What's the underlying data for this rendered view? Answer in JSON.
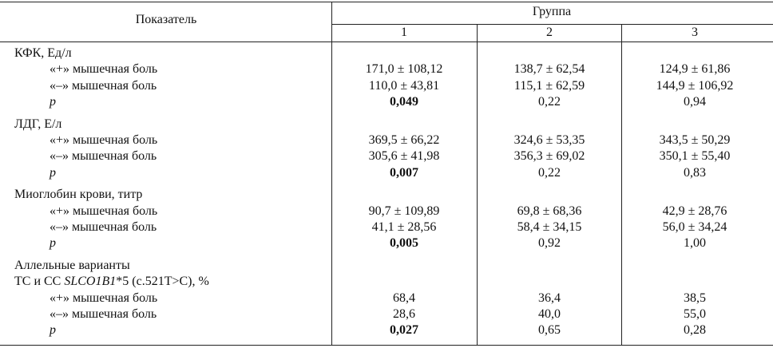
{
  "header": {
    "indicator": "Показатель",
    "group": "Группа",
    "groups": [
      "1",
      "2",
      "3"
    ]
  },
  "sections": [
    {
      "title_lines": [
        [
          {
            "text": "КФК, Ед/л"
          }
        ]
      ],
      "rows": [
        {
          "label": "«+» мышечная боль",
          "cells": [
            "171,0 ± 108,12",
            "138,7 ± 62,54",
            "124,9 ± 61,86"
          ]
        },
        {
          "label": "«–» мышечная боль",
          "cells": [
            "110,0 ± 43,81",
            "115,1 ± 62,59",
            "144,9 ± 106,92"
          ]
        },
        {
          "label": "p",
          "cells": [
            "0,049",
            "0,22",
            "0,94"
          ]
        }
      ]
    },
    {
      "title_lines": [
        [
          {
            "text": "ЛДГ, Е/л"
          }
        ]
      ],
      "rows": [
        {
          "label": "«+» мышечная боль",
          "cells": [
            "369,5 ± 66,22",
            "324,6 ± 53,35",
            "343,5 ± 50,29"
          ]
        },
        {
          "label": "«–» мышечная боль",
          "cells": [
            "305,6 ± 41,98",
            "356,3 ± 69,02",
            "350,1 ± 55,40"
          ]
        },
        {
          "label": "p",
          "cells": [
            "0,007",
            "0,22",
            "0,83"
          ]
        }
      ]
    },
    {
      "title_lines": [
        [
          {
            "text": "Миоглобин крови, титр"
          }
        ]
      ],
      "rows": [
        {
          "label": "«+» мышечная боль",
          "cells": [
            "90,7 ± 109,89",
            "69,8 ± 68,36",
            "42,9 ± 28,76"
          ]
        },
        {
          "label": "«–» мышечная боль",
          "cells": [
            "41,1 ± 28,56",
            "58,4 ± 34,15",
            "56,0 ± 34,24"
          ]
        },
        {
          "label": "p",
          "cells": [
            "0,005",
            "0,92",
            "1,00"
          ]
        }
      ]
    },
    {
      "title_lines": [
        [
          {
            "text": "Аллельные варианты"
          }
        ],
        [
          {
            "text": "ТС и СС "
          },
          {
            "text": "SLCO1B1",
            "italic": true
          },
          {
            "text": "*5 (с.521Т>С), %"
          }
        ]
      ],
      "rows": [
        {
          "label": "«+» мышечная боль",
          "cells": [
            "68,4",
            "36,4",
            "38,5"
          ]
        },
        {
          "label": "«–» мышечная боль",
          "cells": [
            "28,6",
            "40,0",
            "55,0"
          ]
        },
        {
          "label": "p",
          "cells": [
            "0,027",
            "0,65",
            "0,28"
          ]
        }
      ]
    }
  ]
}
